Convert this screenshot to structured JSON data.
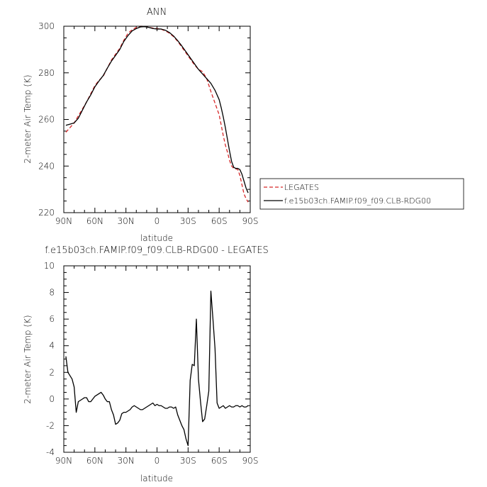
{
  "chart_data": [
    {
      "type": "line",
      "title": "ANN",
      "xlabel": "latitude",
      "ylabel": "2-meter Air Temp (K)",
      "xlim": [
        90,
        -90
      ],
      "ylim": [
        220,
        300
      ],
      "xticks": [
        90,
        60,
        30,
        0,
        -30,
        -60,
        -90
      ],
      "xtick_labels": [
        "90N",
        "60N",
        "30N",
        "0",
        "30S",
        "60S",
        "90S"
      ],
      "yticks": [
        220,
        240,
        260,
        280,
        300
      ],
      "ytick_labels": [
        "220",
        "240",
        "260",
        "280",
        "300"
      ],
      "legend": "right",
      "series": [
        {
          "name": "LEGATES",
          "color": "#d62728",
          "dash": "dashed",
          "x": [
            88,
            84,
            80,
            76,
            72,
            68,
            64,
            60,
            56,
            52,
            48,
            44,
            40,
            36,
            32,
            28,
            24,
            20,
            16,
            12,
            8,
            4,
            0,
            -4,
            -8,
            -12,
            -16,
            -20,
            -24,
            -28,
            -32,
            -36,
            -40,
            -44,
            -48,
            -52,
            -56,
            -60,
            -62,
            -64,
            -66,
            -68,
            -70,
            -72,
            -74,
            -76,
            -78,
            -80,
            -82,
            -84,
            -86,
            -88
          ],
          "y": [
            254.5,
            256.5,
            258.5,
            261.5,
            264.5,
            267.5,
            271,
            274.5,
            276.8,
            278.5,
            282,
            285.5,
            288,
            290.5,
            294,
            297,
            298.5,
            299.5,
            300,
            300,
            299.5,
            299.2,
            299,
            298.7,
            298,
            297,
            295.5,
            293.5,
            291,
            288.5,
            286,
            283.5,
            281.5,
            280.5,
            277.5,
            272,
            267,
            262,
            257.5,
            253,
            249,
            246,
            242.5,
            240,
            239,
            238.8,
            238.5,
            236,
            232,
            228,
            226,
            224.5
          ]
        },
        {
          "name": "f.e15b03ch.FAMIP.f09_f09.CLB-RDG00",
          "color": "#000000",
          "dash": "solid",
          "x": [
            88,
            84,
            80,
            76,
            72,
            68,
            64,
            60,
            56,
            52,
            48,
            44,
            40,
            36,
            32,
            28,
            24,
            20,
            16,
            12,
            8,
            4,
            0,
            -4,
            -8,
            -12,
            -16,
            -20,
            -24,
            -28,
            -32,
            -36,
            -40,
            -44,
            -48,
            -52,
            -56,
            -60,
            -62,
            -64,
            -66,
            -68,
            -70,
            -72,
            -74,
            -76,
            -78,
            -80,
            -82,
            -84,
            -86,
            -88
          ],
          "y": [
            257.5,
            258,
            258.5,
            260.5,
            264,
            267.5,
            270.5,
            274,
            276.5,
            278.8,
            282,
            285,
            287.5,
            290,
            293.5,
            296,
            298,
            299,
            299.7,
            299.8,
            299.5,
            299,
            298.8,
            298.8,
            298.3,
            297.3,
            295.8,
            293.8,
            291.5,
            289,
            286.5,
            284,
            281.5,
            279.5,
            277.5,
            275.5,
            272.5,
            268.5,
            265,
            261,
            256.5,
            251.5,
            246.5,
            242,
            239.5,
            239,
            239,
            238.5,
            236.5,
            233.5,
            230.5,
            228.5
          ]
        }
      ]
    },
    {
      "type": "line",
      "title": "f.e15b03ch.FAMIP.f09_f09.CLB-RDG00 - LEGATES",
      "xlabel": "latitude",
      "ylabel": "2-meter Air Temp (K)",
      "xlim": [
        90,
        -90
      ],
      "ylim": [
        -4,
        10
      ],
      "xticks": [
        90,
        60,
        30,
        0,
        -30,
        -60,
        -90
      ],
      "xtick_labels": [
        "90N",
        "60N",
        "30N",
        "0",
        "30S",
        "60S",
        "90S"
      ],
      "yticks": [
        -4,
        -2,
        0,
        2,
        4,
        6,
        8,
        10
      ],
      "ytick_labels": [
        "-4",
        "-2",
        "0",
        "2",
        "4",
        "6",
        "8",
        "10"
      ],
      "series": [
        {
          "color": "#000000",
          "dash": "solid",
          "x": [
            88,
            86,
            82,
            80,
            78,
            76,
            74,
            72,
            70,
            68,
            66,
            64,
            62,
            60,
            58,
            56,
            54,
            52,
            50,
            48,
            46,
            44,
            42,
            40,
            38,
            36,
            34,
            32,
            30,
            28,
            26,
            24,
            22,
            20,
            18,
            16,
            14,
            12,
            10,
            8,
            6,
            4,
            2,
            0,
            -2,
            -4,
            -6,
            -8,
            -10,
            -12,
            -14,
            -16,
            -18,
            -20,
            -22,
            -24,
            -26,
            -28,
            -30,
            -32,
            -34,
            -36,
            -38,
            -40,
            -42,
            -44,
            -46,
            -48,
            -50,
            -52,
            -54,
            -56,
            -58,
            -60,
            -62,
            -64,
            -66,
            -68,
            -70,
            -72,
            -74,
            -76,
            -78,
            -80,
            -82,
            -84,
            -86,
            -88
          ],
          "y": [
            3.2,
            2.0,
            1.5,
            0.9,
            -1.0,
            -0.2,
            -0.1,
            0.0,
            0.1,
            0.1,
            -0.2,
            -0.2,
            0.0,
            0.2,
            0.3,
            0.4,
            0.5,
            0.3,
            0.0,
            -0.2,
            -0.2,
            -0.8,
            -1.2,
            -1.9,
            -1.8,
            -1.6,
            -1.1,
            -1.0,
            -1.0,
            -0.9,
            -0.8,
            -0.6,
            -0.5,
            -0.6,
            -0.7,
            -0.8,
            -0.8,
            -0.7,
            -0.6,
            -0.5,
            -0.4,
            -0.3,
            -0.5,
            -0.4,
            -0.5,
            -0.5,
            -0.6,
            -0.7,
            -0.7,
            -0.6,
            -0.6,
            -0.7,
            -0.6,
            -1.2,
            -1.6,
            -2.0,
            -2.3,
            -3.0,
            -3.5,
            1.4,
            2.6,
            2.5,
            6.0,
            1.5,
            -0.2,
            -1.7,
            -1.5,
            -0.5,
            0.6,
            8.1,
            6.0,
            3.8,
            -0.3,
            -0.7,
            -0.6,
            -0.5,
            -0.7,
            -0.6,
            -0.5,
            -0.6,
            -0.6,
            -0.5,
            -0.5,
            -0.6,
            -0.5,
            -0.6,
            -0.6,
            -0.5
          ]
        }
      ]
    }
  ]
}
